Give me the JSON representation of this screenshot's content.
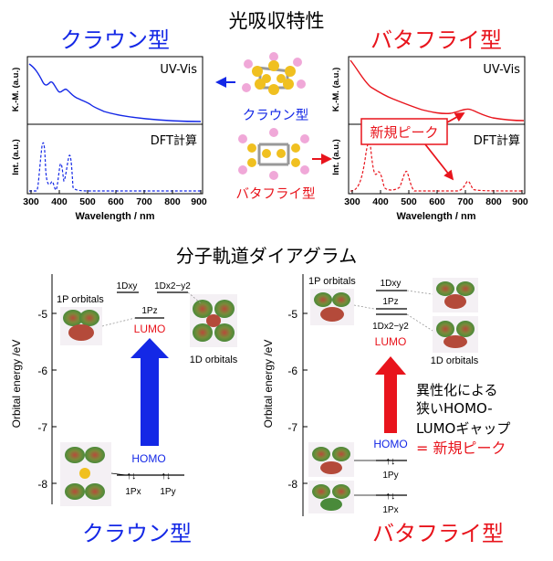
{
  "header": {
    "main_title": "光吸収特性"
  },
  "crown": {
    "title": "クラウン型",
    "color": "#1428e6"
  },
  "butterfly": {
    "title": "バタフライ型",
    "color": "#e8141c"
  },
  "spectra": {
    "top_ylabel": "K.-M. (a.u.)",
    "bottom_ylabel": "Int. (a.u.)",
    "uv_vis_label": "UV-Vis",
    "dft_label": "DFT計算",
    "xlabel": "Wavelength / nm",
    "xticks": [
      "300",
      "400",
      "500",
      "600",
      "700",
      "800",
      "900"
    ],
    "new_peak_label": "新規ピーク"
  },
  "center": {
    "crown_label": "クラウン型",
    "butterfly_label": "バタフライ型"
  },
  "mo": {
    "section_title": "分子軌道ダイアグラム",
    "ylabel": "Orbital energy /eV",
    "yticks": [
      "-5",
      "-6",
      "-7",
      "-8"
    ],
    "crown": {
      "orbitals_1p": "1P orbitals",
      "orbitals_1d": "1D orbitals",
      "d_xy": "1Dxy",
      "d_x2y2": "1Dx2−y2",
      "p_z": "1Pz",
      "lumo": "LUMO",
      "homo": "HOMO",
      "p_x": "1Px",
      "p_y": "1Py",
      "bottom_title": "クラウン型"
    },
    "butterfly": {
      "orbitals_1p": "1P orbitals",
      "orbitals_1d": "1D orbitals",
      "d_xy": "1Dxy",
      "p_z": "1Pz",
      "d_x2y2": "1Dx2−y2",
      "lumo": "LUMO",
      "homo": "HOMO",
      "p_y": "1Py",
      "p_x": "1Px",
      "note_line1": "異性化による",
      "note_line2": "狭いHOMO-",
      "note_line3": "LUMOギャップ",
      "note_line4": "= 新規ピーク",
      "bottom_title": "バタフライ型"
    }
  }
}
